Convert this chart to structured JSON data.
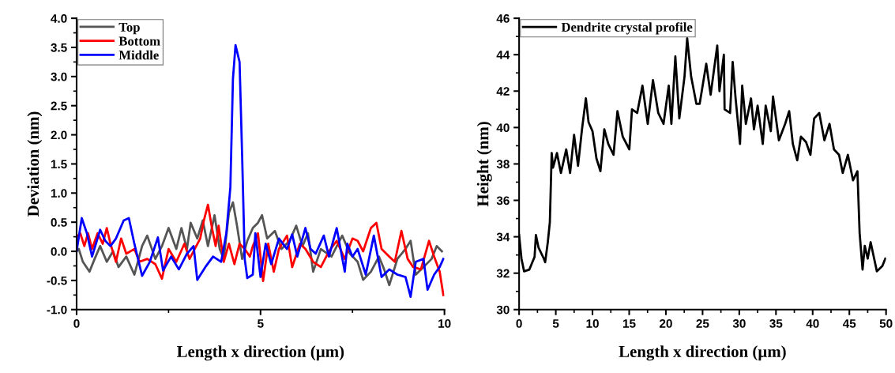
{
  "chart_data": [
    {
      "type": "line",
      "xlabel": "Length x direction (µm)",
      "ylabel": "Deviation (nm)",
      "xlim": [
        0,
        10
      ],
      "xticks": [
        0,
        5,
        10
      ],
      "ylim": [
        -1,
        4
      ],
      "yticks": [
        {
          "value": -1,
          "label": "-1.0"
        },
        {
          "value": -0.5,
          "label": "-0.5"
        },
        {
          "value": 0,
          "label": "0.0"
        },
        {
          "value": 0.5,
          "label": "0.5"
        },
        {
          "value": 1,
          "label": "1.0"
        },
        {
          "value": 1.5,
          "label": "1.5"
        },
        {
          "value": 2,
          "label": "2.0"
        },
        {
          "value": 2.5,
          "label": "2.5"
        },
        {
          "value": 3,
          "label": "3.0"
        },
        {
          "value": 3.5,
          "label": "3.5"
        },
        {
          "value": 4,
          "label": "4.0"
        }
      ],
      "legend": "top left",
      "grid": false,
      "series": [
        {
          "name": "Top",
          "color": "#555555",
          "x": [
            0.0,
            0.06,
            0.17,
            0.35,
            0.49,
            0.64,
            0.82,
            0.99,
            1.14,
            1.35,
            1.57,
            1.78,
            1.92,
            2.14,
            2.32,
            2.5,
            2.71,
            2.85,
            3.0,
            3.1,
            3.28,
            3.43,
            3.57,
            3.75,
            3.89,
            4.0,
            4.14,
            4.25,
            4.36,
            4.5,
            4.64,
            4.79,
            4.93,
            5.04,
            5.18,
            5.39,
            5.57,
            5.79,
            5.97,
            6.14,
            6.29,
            6.43,
            6.64,
            6.93,
            7.22,
            7.43,
            7.64,
            7.79,
            8.0,
            8.22,
            8.36,
            8.5,
            8.72,
            8.94,
            9.08,
            9.22,
            9.43,
            9.65,
            9.79,
            9.93
          ],
          "values": [
            0.0,
            0.04,
            -0.18,
            -0.35,
            -0.13,
            0.09,
            -0.18,
            0.0,
            -0.27,
            -0.09,
            -0.4,
            0.09,
            0.27,
            -0.13,
            0.09,
            0.4,
            0.04,
            0.4,
            0.04,
            0.49,
            0.22,
            0.53,
            0.09,
            0.62,
            0.04,
            -0.13,
            0.66,
            0.84,
            0.44,
            -0.13,
            0.18,
            0.4,
            0.49,
            0.62,
            0.22,
            0.35,
            0.04,
            0.18,
            0.44,
            0.09,
            0.31,
            -0.35,
            0.04,
            -0.09,
            0.27,
            -0.04,
            -0.18,
            -0.49,
            -0.35,
            -0.09,
            -0.31,
            -0.58,
            -0.13,
            0.04,
            0.18,
            -0.4,
            -0.27,
            -0.13,
            0.09,
            0.0
          ]
        },
        {
          "name": "Bottom",
          "color": "#ff0000",
          "x": [
            0.0,
            0.1,
            0.21,
            0.31,
            0.42,
            0.57,
            0.71,
            0.82,
            0.92,
            1.07,
            1.21,
            1.35,
            1.57,
            1.71,
            1.92,
            2.14,
            2.32,
            2.5,
            2.71,
            2.93,
            3.07,
            3.21,
            3.36,
            3.46,
            3.57,
            3.68,
            3.78,
            3.86,
            4.0,
            4.14,
            4.29,
            4.43,
            4.57,
            4.71,
            4.79,
            4.93,
            5.07,
            5.21,
            5.36,
            5.5,
            5.72,
            5.86,
            6.07,
            6.22,
            6.43,
            6.64,
            6.86,
            7.07,
            7.29,
            7.5,
            7.64,
            7.79,
            8.0,
            8.15,
            8.29,
            8.5,
            8.65,
            8.83,
            9.0,
            9.15,
            9.36,
            9.58,
            9.72,
            9.87,
            9.97
          ],
          "values": [
            0.24,
            0.31,
            0.09,
            0.31,
            0.04,
            0.31,
            0.13,
            0.4,
            0.13,
            -0.18,
            0.22,
            -0.04,
            0.04,
            -0.18,
            -0.13,
            -0.22,
            -0.47,
            0.04,
            -0.18,
            0.13,
            -0.13,
            0.04,
            0.22,
            0.53,
            0.8,
            0.4,
            0.09,
            0.44,
            -0.18,
            0.13,
            -0.22,
            0.13,
            0.04,
            -0.09,
            0.09,
            0.31,
            -0.51,
            0.13,
            -0.35,
            0.04,
            0.27,
            -0.27,
            0.13,
            0.04,
            -0.18,
            -0.27,
            0.0,
            0.18,
            -0.13,
            0.22,
            0.18,
            0.0,
            0.4,
            0.49,
            0.04,
            -0.09,
            -0.18,
            0.35,
            -0.13,
            -0.27,
            -0.31,
            0.18,
            -0.09,
            -0.35,
            -0.75
          ]
        },
        {
          "name": "Middle",
          "color": "#0000ff",
          "x": [
            0.0,
            0.14,
            0.28,
            0.42,
            0.64,
            0.78,
            0.92,
            1.07,
            1.28,
            1.42,
            1.57,
            1.78,
            1.99,
            2.21,
            2.35,
            2.57,
            2.78,
            3.0,
            3.18,
            3.28,
            3.5,
            3.71,
            3.93,
            4.07,
            4.18,
            4.25,
            4.32,
            4.43,
            4.5,
            4.57,
            4.64,
            4.79,
            4.86,
            5.0,
            5.14,
            5.29,
            5.5,
            5.72,
            5.86,
            6.0,
            6.22,
            6.36,
            6.5,
            6.72,
            6.86,
            7.07,
            7.29,
            7.36,
            7.5,
            7.64,
            7.86,
            8.08,
            8.29,
            8.5,
            8.72,
            8.94,
            9.08,
            9.22,
            9.43,
            9.54,
            9.72,
            9.87,
            9.97
          ],
          "values": [
            0.0,
            0.57,
            0.31,
            -0.09,
            0.37,
            0.18,
            0.09,
            0.22,
            0.53,
            0.57,
            0.13,
            -0.42,
            -0.18,
            0.24,
            -0.33,
            -0.09,
            -0.31,
            -0.04,
            0.09,
            -0.49,
            -0.27,
            -0.09,
            -0.18,
            0.31,
            1.1,
            2.96,
            3.54,
            3.25,
            1.64,
            -0.13,
            -0.46,
            -0.4,
            0.31,
            -0.44,
            0.13,
            -0.22,
            0.22,
            0.04,
            0.29,
            -0.09,
            0.4,
            0.04,
            -0.04,
            0.27,
            -0.09,
            0.4,
            -0.35,
            0.13,
            -0.09,
            0.04,
            -0.4,
            0.27,
            -0.44,
            -0.31,
            -0.4,
            -0.44,
            -0.78,
            -0.18,
            -0.13,
            -0.66,
            -0.4,
            -0.27,
            -0.13
          ]
        }
      ]
    },
    {
      "type": "line",
      "xlabel": "Length x direction (µm)",
      "ylabel": "Height (nm)",
      "xlim": [
        0,
        50
      ],
      "xticks": [
        0,
        5,
        10,
        15,
        20,
        25,
        30,
        35,
        40,
        45,
        50
      ],
      "ylim": [
        30,
        46
      ],
      "yticks": [
        30,
        32,
        34,
        36,
        38,
        40,
        42,
        44,
        46
      ],
      "legend": "top left",
      "grid": false,
      "series": [
        {
          "name": "Dendrite crystal profile",
          "color": "#000000",
          "x": [
            0,
            0.32,
            0.68,
            1.4,
            2.11,
            2.29,
            2.65,
            3.37,
            3.55,
            3.91,
            4.19,
            4.44,
            4.62,
            5.16,
            5.7,
            6.42,
            6.95,
            7.49,
            8.03,
            8.57,
            9.1,
            9.46,
            10.0,
            10.54,
            11.08,
            11.61,
            12.15,
            12.87,
            13.4,
            14.12,
            15.02,
            15.38,
            16.09,
            16.81,
            17.53,
            18.24,
            18.96,
            19.68,
            20.39,
            20.75,
            21.29,
            21.83,
            22.54,
            22.9,
            23.44,
            24.16,
            24.6,
            25.5,
            26.1,
            27.0,
            27.3,
            27.9,
            28.0,
            28.75,
            29.1,
            29.5,
            30.1,
            30.4,
            30.9,
            31.6,
            32.0,
            32.5,
            33.2,
            33.6,
            34.3,
            34.6,
            35.4,
            36.25,
            36.8,
            37.3,
            37.9,
            38.4,
            39.1,
            39.7,
            40.2,
            40.9,
            41.6,
            42.3,
            42.9,
            43.6,
            44.1,
            44.8,
            45.5,
            46.1,
            46.4,
            46.8,
            47.1,
            47.5,
            47.9,
            48.75,
            49.5,
            49.9
          ],
          "values": [
            34.1,
            32.8,
            32.1,
            32.2,
            32.9,
            34.1,
            33.4,
            32.8,
            32.6,
            33.7,
            34.8,
            38.6,
            37.8,
            38.6,
            37.5,
            38.8,
            37.5,
            39.6,
            37.9,
            39.9,
            41.6,
            40.3,
            39.8,
            38.3,
            37.6,
            39.9,
            39.1,
            38.5,
            40.9,
            39.5,
            38.8,
            41.0,
            40.8,
            42.3,
            40.2,
            42.6,
            40.8,
            40.2,
            42.3,
            40.2,
            43.9,
            40.5,
            42.8,
            44.9,
            42.8,
            41.3,
            41.3,
            43.5,
            41.8,
            44.5,
            42.0,
            44.0,
            41.0,
            40.8,
            43.6,
            41.6,
            39.1,
            42.3,
            40.2,
            41.6,
            39.9,
            41.2,
            39.1,
            41.2,
            39.8,
            41.7,
            39.3,
            40.2,
            40.9,
            39.1,
            38.2,
            39.5,
            39.2,
            38.5,
            40.5,
            40.8,
            39.3,
            40.2,
            38.8,
            38.5,
            37.5,
            38.5,
            37.1,
            37.6,
            34.2,
            32.2,
            33.5,
            32.8,
            33.7,
            32.1,
            32.4,
            32.8
          ]
        }
      ]
    }
  ]
}
